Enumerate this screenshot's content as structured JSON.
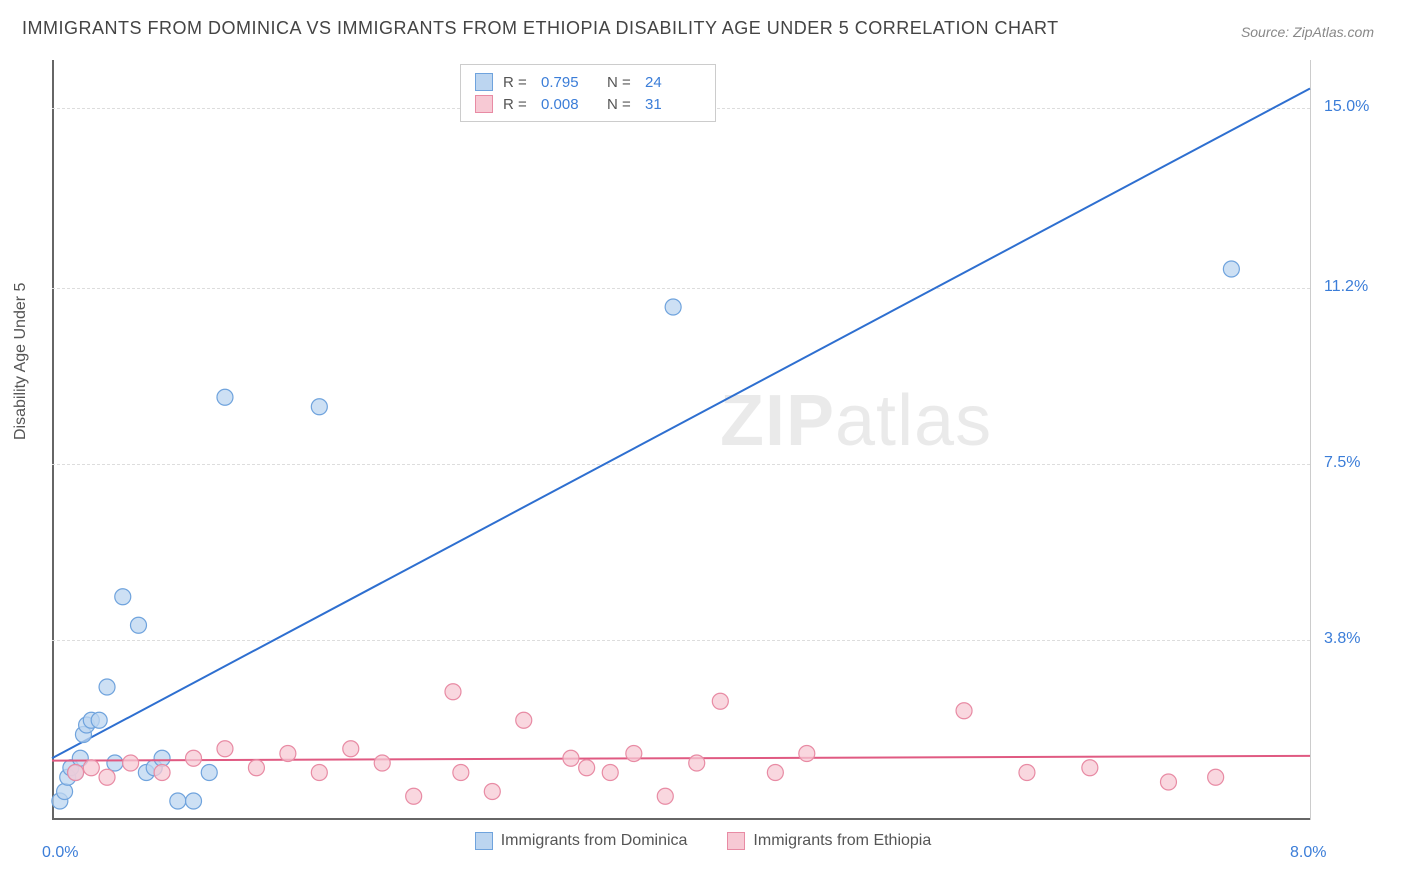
{
  "title": "IMMIGRANTS FROM DOMINICA VS IMMIGRANTS FROM ETHIOPIA DISABILITY AGE UNDER 5 CORRELATION CHART",
  "source": "Source: ZipAtlas.com",
  "y_axis_title": "Disability Age Under 5",
  "watermark": {
    "bold": "ZIP",
    "rest": "atlas"
  },
  "chart": {
    "type": "scatter-with-regression",
    "background_color": "#ffffff",
    "grid_color": "#dddddd",
    "axis_color": "#666666",
    "xlim": [
      0.0,
      8.0
    ],
    "ylim": [
      0.0,
      16.0
    ],
    "x_ticks": [
      {
        "pos": 0.0,
        "label": "0.0%",
        "side": "left"
      },
      {
        "pos": 8.0,
        "label": "8.0%",
        "side": "right"
      }
    ],
    "y_ticks_right": [
      {
        "pos": 15.0,
        "label": "15.0%"
      },
      {
        "pos": 11.2,
        "label": "11.2%"
      },
      {
        "pos": 7.5,
        "label": "7.5%"
      },
      {
        "pos": 3.8,
        "label": "3.8%"
      }
    ],
    "y_gridlines": [
      15.0,
      11.2,
      7.5,
      3.8
    ],
    "marker_radius": 8,
    "marker_stroke_width": 1.2,
    "line_width": 2,
    "legend_top": {
      "rows": [
        {
          "color_fill": "#bcd5f0",
          "color_stroke": "#6fa3dd",
          "r_label": "R  =",
          "r_val": "0.795",
          "n_label": "N  =",
          "n_val": "24"
        },
        {
          "color_fill": "#f7c9d4",
          "color_stroke": "#e88ba4",
          "r_label": "R  =",
          "r_val": "0.008",
          "n_label": "N  =",
          "n_val": "31"
        }
      ]
    },
    "legend_bottom": [
      {
        "color_fill": "#bcd5f0",
        "color_stroke": "#6fa3dd",
        "label": "Immigrants from Dominica"
      },
      {
        "color_fill": "#f7c9d4",
        "color_stroke": "#e88ba4",
        "label": "Immigrants from Ethiopia"
      }
    ],
    "series": [
      {
        "name": "Immigrants from Dominica",
        "color_fill": "#bcd5f0",
        "color_stroke": "#6fa3dd",
        "line_color": "#2e6fd0",
        "regression": {
          "x1": 0.0,
          "y1": 1.3,
          "x2": 8.0,
          "y2": 15.4
        },
        "points": [
          [
            0.05,
            0.4
          ],
          [
            0.08,
            0.6
          ],
          [
            0.1,
            0.9
          ],
          [
            0.12,
            1.1
          ],
          [
            0.15,
            1.0
          ],
          [
            0.18,
            1.3
          ],
          [
            0.2,
            1.8
          ],
          [
            0.22,
            2.0
          ],
          [
            0.25,
            2.1
          ],
          [
            0.3,
            2.1
          ],
          [
            0.35,
            2.8
          ],
          [
            0.4,
            1.2
          ],
          [
            0.45,
            4.7
          ],
          [
            0.55,
            4.1
          ],
          [
            0.6,
            1.0
          ],
          [
            0.65,
            1.1
          ],
          [
            0.7,
            1.3
          ],
          [
            0.8,
            0.4
          ],
          [
            0.9,
            0.4
          ],
          [
            1.0,
            1.0
          ],
          [
            1.1,
            8.9
          ],
          [
            1.7,
            8.7
          ],
          [
            3.95,
            10.8
          ],
          [
            7.5,
            11.6
          ]
        ]
      },
      {
        "name": "Immigrants from Ethiopia",
        "color_fill": "#f7c9d4",
        "color_stroke": "#e88ba4",
        "line_color": "#e05a82",
        "regression": {
          "x1": 0.0,
          "y1": 1.25,
          "x2": 8.0,
          "y2": 1.35
        },
        "points": [
          [
            0.15,
            1.0
          ],
          [
            0.25,
            1.1
          ],
          [
            0.35,
            0.9
          ],
          [
            0.5,
            1.2
          ],
          [
            0.7,
            1.0
          ],
          [
            0.9,
            1.3
          ],
          [
            1.1,
            1.5
          ],
          [
            1.3,
            1.1
          ],
          [
            1.5,
            1.4
          ],
          [
            1.7,
            1.0
          ],
          [
            1.9,
            1.5
          ],
          [
            2.1,
            1.2
          ],
          [
            2.3,
            0.5
          ],
          [
            2.55,
            2.7
          ],
          [
            2.6,
            1.0
          ],
          [
            2.8,
            0.6
          ],
          [
            3.0,
            2.1
          ],
          [
            3.3,
            1.3
          ],
          [
            3.4,
            1.1
          ],
          [
            3.55,
            1.0
          ],
          [
            3.7,
            1.4
          ],
          [
            3.9,
            0.5
          ],
          [
            4.1,
            1.2
          ],
          [
            4.25,
            2.5
          ],
          [
            4.6,
            1.0
          ],
          [
            4.8,
            1.4
          ],
          [
            5.8,
            2.3
          ],
          [
            6.2,
            1.0
          ],
          [
            6.6,
            1.1
          ],
          [
            7.1,
            0.8
          ],
          [
            7.4,
            0.9
          ]
        ]
      }
    ]
  }
}
